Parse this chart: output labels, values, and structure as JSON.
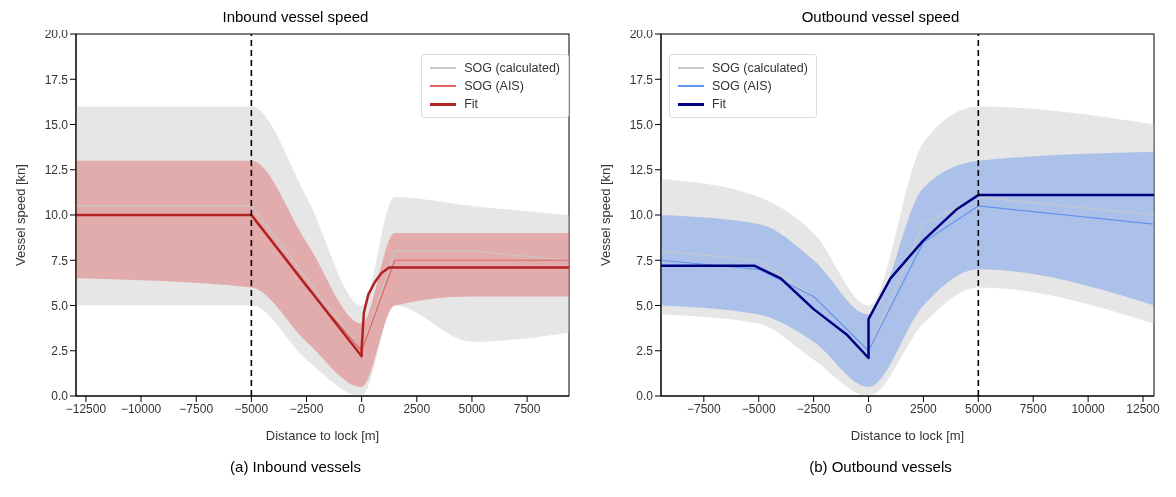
{
  "chart_data": [
    {
      "type": "line",
      "title": "Inbound vessel speed",
      "xlabel": "Distance to lock [m]",
      "ylabel": "Vessel speed [kn]",
      "xlim": [
        -12950,
        9400
      ],
      "xticks": [
        {
          "value": -12500,
          "label": "−12500"
        },
        {
          "value": -10000,
          "label": "−10000"
        },
        {
          "value": -7500,
          "label": "−7500"
        },
        {
          "value": -5000,
          "label": "−5000"
        },
        {
          "value": -2500,
          "label": "−2500"
        },
        0,
        2500,
        5000,
        7500
      ],
      "ylim": [
        0,
        20
      ],
      "yticks": [
        {
          "value": 0,
          "label": "0.0"
        },
        {
          "value": 2.5,
          "label": "2.5"
        },
        {
          "value": 5,
          "label": "5.0"
        },
        {
          "value": 7.5,
          "label": "7.5"
        },
        {
          "value": 10,
          "label": "10.0"
        },
        {
          "value": 12.5,
          "label": "12.5"
        },
        {
          "value": 15,
          "label": "15.0"
        },
        {
          "value": 17.5,
          "label": "17.5"
        },
        {
          "value": 20,
          "label": "20.0"
        }
      ],
      "grid": false,
      "legend": "top right",
      "series": [
        {
          "name": "SOG (calculated)",
          "color": "#c8c8c8",
          "x": [
            -12950,
            -5000,
            -2500,
            0,
            1500,
            5000,
            9400
          ],
          "values": [
            10.5,
            10.5,
            6.5,
            2.5,
            8,
            8,
            7.5
          ],
          "lower": [
            5,
            5,
            2,
            0,
            5,
            3,
            3.5
          ],
          "upper": [
            16,
            16,
            11,
            5,
            11,
            10.5,
            10
          ]
        },
        {
          "name": "SOG (AIS)",
          "color": "#e06666",
          "x": [
            -12950,
            -5000,
            -2500,
            0,
            1500,
            5000,
            9400
          ],
          "values": [
            10,
            10,
            6,
            2.5,
            7.5,
            7.5,
            7.5
          ],
          "lower": [
            6.5,
            6,
            3,
            0.5,
            5,
            5.5,
            5.5
          ],
          "upper": [
            13,
            13,
            8.5,
            4,
            9,
            9,
            9
          ]
        },
        {
          "name": "Fit",
          "color": "#b22222",
          "x": [
            -12950,
            -5000,
            0,
            0,
            100,
            300,
            600,
            900,
            1250,
            9400
          ],
          "values": [
            10,
            10,
            2.2,
            2.6,
            4.6,
            5.6,
            6.3,
            6.8,
            7.1,
            7.1
          ]
        }
      ],
      "ref_lines": [
        {
          "axis": "x",
          "value": -5000,
          "color": "#000000",
          "line_style": "dashed"
        }
      ],
      "annotations": [
        "(a) Inbound vessels"
      ]
    },
    {
      "type": "line",
      "title": "Outbound vessel speed",
      "xlabel": "Distance to lock [m]",
      "ylabel": "Vessel speed [kn]",
      "xlim": [
        -9450,
        13000
      ],
      "xticks": [
        {
          "value": -7500,
          "label": "−7500"
        },
        {
          "value": -5000,
          "label": "−5000"
        },
        {
          "value": -2500,
          "label": "−2500"
        },
        0,
        2500,
        5000,
        7500,
        10000,
        12500
      ],
      "ylim": [
        0,
        20
      ],
      "yticks": [
        {
          "value": 0,
          "label": "0.0"
        },
        {
          "value": 2.5,
          "label": "2.5"
        },
        {
          "value": 5,
          "label": "5.0"
        },
        {
          "value": 7.5,
          "label": "7.5"
        },
        {
          "value": 10,
          "label": "10.0"
        },
        {
          "value": 12.5,
          "label": "12.5"
        },
        {
          "value": 15,
          "label": "15.0"
        },
        {
          "value": 17.5,
          "label": "17.5"
        },
        {
          "value": 20,
          "label": "20.0"
        }
      ],
      "grid": false,
      "legend": "top left",
      "series": [
        {
          "name": "SOG (calculated)",
          "color": "#c8c8c8",
          "x": [
            -9450,
            -5000,
            -2500,
            0,
            2500,
            5000,
            13000
          ],
          "values": [
            8,
            7.5,
            5.5,
            2.5,
            9.5,
            11,
            10
          ],
          "lower": [
            4.5,
            4,
            2,
            0,
            4,
            6,
            4
          ],
          "upper": [
            12,
            11,
            9,
            5,
            14,
            16,
            15
          ]
        },
        {
          "name": "SOG (AIS)",
          "color": "#6495ed",
          "x": [
            -9450,
            -5000,
            -2500,
            0,
            2500,
            5000,
            13000
          ],
          "values": [
            7.5,
            7,
            5.5,
            2.5,
            8.5,
            10.5,
            9.5
          ],
          "lower": [
            5,
            4.5,
            3,
            0.5,
            5,
            7,
            5
          ],
          "upper": [
            10,
            9.5,
            7.5,
            4.5,
            11.5,
            13,
            13.5
          ]
        },
        {
          "name": "Fit",
          "color": "#000080",
          "x": [
            -9450,
            -5200,
            -4000,
            -2500,
            -1000,
            0,
            0,
            1000,
            2500,
            4000,
            5000,
            13000
          ],
          "values": [
            7.2,
            7.2,
            6.5,
            4.8,
            3.4,
            2.1,
            4.25,
            6.5,
            8.6,
            10.3,
            11.1,
            11.1
          ]
        }
      ],
      "ref_lines": [
        {
          "axis": "x",
          "value": 5000,
          "color": "#000000",
          "line_style": "dashed"
        }
      ],
      "annotations": [
        "(b) Outbound vessels"
      ]
    }
  ]
}
